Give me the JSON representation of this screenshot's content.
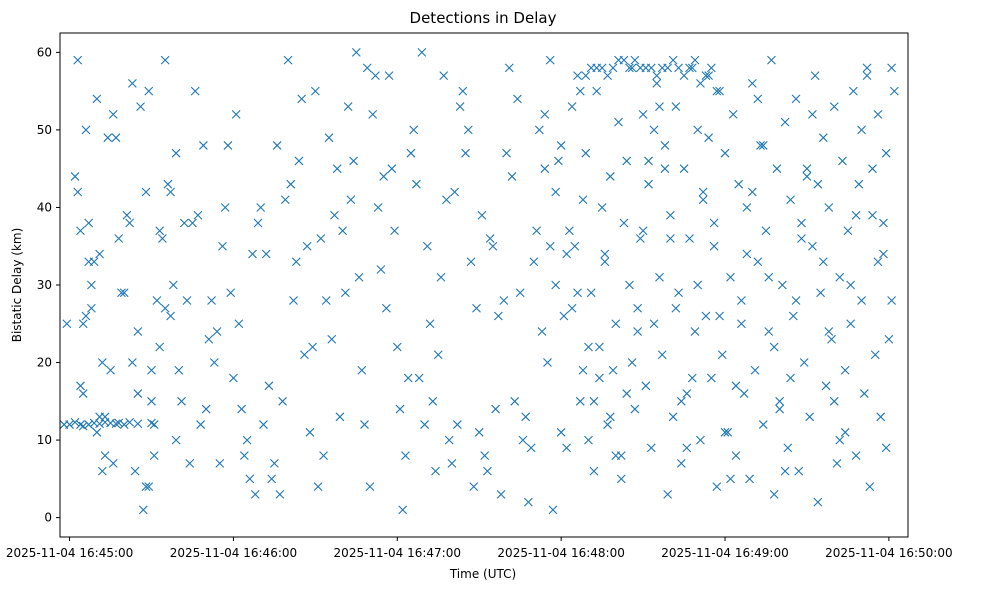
{
  "chart_data": {
    "type": "scatter",
    "title": "Detections in Delay",
    "xlabel": "Time (UTC)",
    "ylabel": "Bistatic Delay (km)",
    "marker": "x",
    "color": "#1f77b4",
    "x_axis_type": "time",
    "x_range_seconds": [
      -3.5,
      307
    ],
    "xlim": [
      "2025-11-04 16:44:56.5",
      "2025-11-04 16:50:07"
    ],
    "ylim": [
      -2.5,
      62.5
    ],
    "x_ticks": [
      "2025-11-04 16:45:00",
      "2025-11-04 16:46:00",
      "2025-11-04 16:47:00",
      "2025-11-04 16:48:00",
      "2025-11-04 16:49:00",
      "2025-11-04 16:50:00"
    ],
    "y_ticks": [
      0,
      10,
      20,
      30,
      40,
      50,
      60
    ],
    "grid": false,
    "points": [
      [
        -2,
        12
      ],
      [
        0,
        12
      ],
      [
        2,
        12.3
      ],
      [
        4,
        12
      ],
      [
        5,
        11.8
      ],
      [
        7,
        12
      ],
      [
        9,
        12.2
      ],
      [
        11,
        12.1
      ],
      [
        13,
        12.3
      ],
      [
        15,
        12.2
      ],
      [
        17,
        12.1
      ],
      [
        18,
        12.2
      ],
      [
        20,
        12
      ],
      [
        22,
        12.3
      ],
      [
        25,
        12.1
      ],
      [
        30,
        12.2
      ],
      [
        -1,
        25
      ],
      [
        3,
        59
      ],
      [
        4,
        17
      ],
      [
        5,
        16
      ],
      [
        6,
        50
      ],
      [
        7,
        38
      ],
      [
        8,
        27
      ],
      [
        10,
        54
      ],
      [
        11,
        34
      ],
      [
        12,
        20
      ],
      [
        13,
        13
      ],
      [
        15,
        19
      ],
      [
        16,
        7
      ],
      [
        17,
        49
      ],
      [
        18,
        36
      ],
      [
        20,
        29
      ],
      [
        21,
        39
      ],
      [
        22,
        38
      ],
      [
        23,
        20
      ],
      [
        24,
        6
      ],
      [
        25,
        24
      ],
      [
        26,
        53
      ],
      [
        28,
        42
      ],
      [
        29,
        55
      ],
      [
        30,
        19
      ],
      [
        31,
        8
      ],
      [
        32,
        28
      ],
      [
        33,
        37
      ],
      [
        34,
        36
      ],
      [
        35,
        59
      ],
      [
        36,
        43
      ],
      [
        37,
        42
      ],
      [
        38,
        30
      ],
      [
        39,
        10
      ],
      [
        2,
        44
      ],
      [
        3,
        42
      ],
      [
        4,
        37
      ],
      [
        5,
        25
      ],
      [
        6,
        26
      ],
      [
        7,
        33
      ],
      [
        8,
        30
      ],
      [
        9,
        33
      ],
      [
        10,
        11
      ],
      [
        11,
        13
      ],
      [
        12,
        6
      ],
      [
        13,
        8
      ],
      [
        14,
        49
      ],
      [
        16,
        52
      ],
      [
        19,
        29
      ],
      [
        23,
        56
      ],
      [
        25,
        16
      ],
      [
        27,
        1
      ],
      [
        28,
        4
      ],
      [
        29,
        4
      ],
      [
        30,
        15
      ],
      [
        31,
        12
      ],
      [
        33,
        22
      ],
      [
        35,
        27
      ],
      [
        37,
        26
      ],
      [
        39,
        47
      ],
      [
        40,
        19
      ],
      [
        41,
        15
      ],
      [
        42,
        38
      ],
      [
        43,
        28
      ],
      [
        44,
        7
      ],
      [
        45,
        38
      ],
      [
        46,
        55
      ],
      [
        47,
        39
      ],
      [
        48,
        12
      ],
      [
        49,
        48
      ],
      [
        50,
        14
      ],
      [
        51,
        23
      ],
      [
        52,
        28
      ],
      [
        53,
        20
      ],
      [
        54,
        24
      ],
      [
        55,
        7
      ],
      [
        56,
        35
      ],
      [
        57,
        40
      ],
      [
        58,
        48
      ],
      [
        59,
        29
      ],
      [
        60,
        18
      ],
      [
        61,
        52
      ],
      [
        62,
        25
      ],
      [
        63,
        14
      ],
      [
        64,
        8
      ],
      [
        65,
        10
      ],
      [
        66,
        5
      ],
      [
        67,
        34
      ],
      [
        68,
        3
      ],
      [
        69,
        38
      ],
      [
        70,
        40
      ],
      [
        71,
        12
      ],
      [
        72,
        34
      ],
      [
        73,
        17
      ],
      [
        74,
        5
      ],
      [
        75,
        7
      ],
      [
        76,
        48
      ],
      [
        77,
        3
      ],
      [
        78,
        15
      ],
      [
        79,
        41
      ],
      [
        80,
        59
      ],
      [
        81,
        43
      ],
      [
        82,
        28
      ],
      [
        83,
        33
      ],
      [
        84,
        46
      ],
      [
        85,
        54
      ],
      [
        86,
        21
      ],
      [
        87,
        35
      ],
      [
        88,
        11
      ],
      [
        89,
        22
      ],
      [
        90,
        55
      ],
      [
        91,
        4
      ],
      [
        92,
        36
      ],
      [
        93,
        8
      ],
      [
        94,
        28
      ],
      [
        95,
        49
      ],
      [
        96,
        23
      ],
      [
        97,
        39
      ],
      [
        98,
        45
      ],
      [
        99,
        13
      ],
      [
        100,
        37
      ],
      [
        101,
        29
      ],
      [
        102,
        53
      ],
      [
        103,
        41
      ],
      [
        104,
        46
      ],
      [
        105,
        60
      ],
      [
        106,
        31
      ],
      [
        107,
        19
      ],
      [
        108,
        12
      ],
      [
        109,
        58
      ],
      [
        110,
        4
      ],
      [
        111,
        52
      ],
      [
        112,
        57
      ],
      [
        113,
        40
      ],
      [
        114,
        32
      ],
      [
        115,
        44
      ],
      [
        116,
        27
      ],
      [
        117,
        57
      ],
      [
        118,
        45
      ],
      [
        119,
        37
      ],
      [
        120,
        22
      ],
      [
        121,
        14
      ],
      [
        122,
        1
      ],
      [
        123,
        8
      ],
      [
        124,
        18
      ],
      [
        125,
        47
      ],
      [
        126,
        50
      ],
      [
        127,
        43
      ],
      [
        128,
        18
      ],
      [
        129,
        60
      ],
      [
        130,
        12
      ],
      [
        131,
        35
      ],
      [
        132,
        25
      ],
      [
        133,
        15
      ],
      [
        134,
        6
      ],
      [
        135,
        21
      ],
      [
        136,
        31
      ],
      [
        137,
        57
      ],
      [
        138,
        41
      ],
      [
        139,
        10
      ],
      [
        140,
        7
      ],
      [
        141,
        42
      ],
      [
        142,
        12
      ],
      [
        143,
        53
      ],
      [
        144,
        55
      ],
      [
        145,
        47
      ],
      [
        146,
        50
      ],
      [
        147,
        33
      ],
      [
        148,
        4
      ],
      [
        149,
        27
      ],
      [
        150,
        11
      ],
      [
        151,
        39
      ],
      [
        152,
        8
      ],
      [
        153,
        6
      ],
      [
        154,
        36
      ],
      [
        155,
        35
      ],
      [
        156,
        14
      ],
      [
        157,
        26
      ],
      [
        158,
        3
      ],
      [
        159,
        28
      ],
      [
        160,
        47
      ],
      [
        161,
        58
      ],
      [
        162,
        44
      ],
      [
        163,
        15
      ],
      [
        164,
        54
      ],
      [
        165,
        29
      ],
      [
        166,
        10
      ],
      [
        167,
        13
      ],
      [
        168,
        2
      ],
      [
        169,
        9
      ],
      [
        170,
        33
      ],
      [
        171,
        37
      ],
      [
        172,
        50
      ],
      [
        173,
        24
      ],
      [
        174,
        45
      ],
      [
        175,
        20
      ],
      [
        176,
        59
      ],
      [
        177,
        1
      ],
      [
        178,
        30
      ],
      [
        179,
        46
      ],
      [
        180,
        11
      ],
      [
        181,
        26
      ],
      [
        182,
        9
      ],
      [
        183,
        37
      ],
      [
        184,
        53
      ],
      [
        185,
        35
      ],
      [
        186,
        57
      ],
      [
        187,
        15
      ],
      [
        188,
        41
      ],
      [
        189,
        47
      ],
      [
        190,
        22
      ],
      [
        191,
        29
      ],
      [
        192,
        6
      ],
      [
        193,
        55
      ],
      [
        194,
        18
      ],
      [
        195,
        40
      ],
      [
        196,
        34
      ],
      [
        197,
        12
      ],
      [
        198,
        44
      ],
      [
        199,
        19
      ],
      [
        200,
        25
      ],
      [
        201,
        51
      ],
      [
        202,
        8
      ],
      [
        203,
        38
      ],
      [
        204,
        46
      ],
      [
        205,
        30
      ],
      [
        206,
        58
      ],
      [
        207,
        14
      ],
      [
        208,
        27
      ],
      [
        209,
        36
      ],
      [
        210,
        52
      ],
      [
        211,
        17
      ],
      [
        212,
        43
      ],
      [
        213,
        9
      ],
      [
        214,
        25
      ],
      [
        215,
        56
      ],
      [
        216,
        31
      ],
      [
        217,
        21
      ],
      [
        218,
        48
      ],
      [
        219,
        3
      ],
      [
        220,
        39
      ],
      [
        221,
        13
      ],
      [
        222,
        53
      ],
      [
        223,
        29
      ],
      [
        224,
        7
      ],
      [
        225,
        45
      ],
      [
        226,
        16
      ],
      [
        227,
        36
      ],
      [
        228,
        58
      ],
      [
        229,
        24
      ],
      [
        230,
        50
      ],
      [
        231,
        10
      ],
      [
        232,
        42
      ],
      [
        233,
        26
      ],
      [
        234,
        57
      ],
      [
        235,
        18
      ],
      [
        236,
        35
      ],
      [
        237,
        4
      ],
      [
        238,
        55
      ],
      [
        239,
        21
      ],
      [
        240,
        47
      ],
      [
        241,
        11
      ],
      [
        242,
        31
      ],
      [
        243,
        52
      ],
      [
        244,
        8
      ],
      [
        245,
        43
      ],
      [
        246,
        28
      ],
      [
        247,
        16
      ],
      [
        248,
        40
      ],
      [
        249,
        5
      ],
      [
        250,
        56
      ],
      [
        251,
        19
      ],
      [
        252,
        33
      ],
      [
        253,
        48
      ],
      [
        254,
        12
      ],
      [
        255,
        37
      ],
      [
        256,
        24
      ],
      [
        257,
        59
      ],
      [
        258,
        3
      ],
      [
        259,
        45
      ],
      [
        260,
        15
      ],
      [
        261,
        30
      ],
      [
        262,
        51
      ],
      [
        263,
        9
      ],
      [
        264,
        41
      ],
      [
        265,
        26
      ],
      [
        266,
        54
      ],
      [
        267,
        6
      ],
      [
        268,
        38
      ],
      [
        269,
        20
      ],
      [
        270,
        44
      ],
      [
        271,
        13
      ],
      [
        272,
        35
      ],
      [
        273,
        57
      ],
      [
        274,
        2
      ],
      [
        275,
        29
      ],
      [
        276,
        49
      ],
      [
        277,
        17
      ],
      [
        278,
        40
      ],
      [
        279,
        23
      ],
      [
        280,
        53
      ],
      [
        281,
        7
      ],
      [
        282,
        31
      ],
      [
        283,
        46
      ],
      [
        284,
        11
      ],
      [
        285,
        37
      ],
      [
        286,
        25
      ],
      [
        287,
        55
      ],
      [
        288,
        8
      ],
      [
        289,
        43
      ],
      [
        290,
        28
      ],
      [
        291,
        16
      ],
      [
        292,
        58
      ],
      [
        293,
        4
      ],
      [
        294,
        39
      ],
      [
        295,
        21
      ],
      [
        296,
        52
      ],
      [
        297,
        13
      ],
      [
        298,
        34
      ],
      [
        299,
        47
      ],
      [
        300,
        23
      ],
      [
        301,
        28
      ],
      [
        187,
        55
      ],
      [
        189,
        57
      ],
      [
        191,
        58
      ],
      [
        193,
        58
      ],
      [
        195,
        58
      ],
      [
        197,
        57
      ],
      [
        199,
        58
      ],
      [
        201,
        59
      ],
      [
        203,
        59
      ],
      [
        205,
        58
      ],
      [
        207,
        59
      ],
      [
        209,
        58
      ],
      [
        211,
        58
      ],
      [
        213,
        58
      ],
      [
        215,
        57
      ],
      [
        217,
        58
      ],
      [
        219,
        58
      ],
      [
        221,
        59
      ],
      [
        223,
        58
      ],
      [
        225,
        57
      ],
      [
        227,
        58
      ],
      [
        229,
        59
      ],
      [
        231,
        56
      ],
      [
        233,
        57
      ],
      [
        235,
        58
      ],
      [
        237,
        55
      ],
      [
        174,
        52
      ],
      [
        176,
        35
      ],
      [
        178,
        42
      ],
      [
        180,
        48
      ],
      [
        182,
        34
      ],
      [
        184,
        27
      ],
      [
        186,
        29
      ],
      [
        188,
        19
      ],
      [
        190,
        10
      ],
      [
        192,
        15
      ],
      [
        194,
        22
      ],
      [
        196,
        33
      ],
      [
        198,
        13
      ],
      [
        200,
        8
      ],
      [
        202,
        5
      ],
      [
        204,
        16
      ],
      [
        206,
        20
      ],
      [
        208,
        24
      ],
      [
        210,
        37
      ],
      [
        212,
        46
      ],
      [
        214,
        50
      ],
      [
        216,
        53
      ],
      [
        218,
        45
      ],
      [
        220,
        36
      ],
      [
        222,
        27
      ],
      [
        224,
        15
      ],
      [
        226,
        9
      ],
      [
        228,
        18
      ],
      [
        230,
        30
      ],
      [
        232,
        41
      ],
      [
        234,
        49
      ],
      [
        236,
        38
      ],
      [
        238,
        26
      ],
      [
        240,
        11
      ],
      [
        242,
        5
      ],
      [
        244,
        17
      ],
      [
        246,
        25
      ],
      [
        248,
        34
      ],
      [
        250,
        42
      ],
      [
        252,
        54
      ],
      [
        254,
        48
      ],
      [
        256,
        31
      ],
      [
        258,
        22
      ],
      [
        260,
        14
      ],
      [
        262,
        6
      ],
      [
        264,
        18
      ],
      [
        266,
        28
      ],
      [
        268,
        36
      ],
      [
        270,
        45
      ],
      [
        272,
        52
      ],
      [
        274,
        43
      ],
      [
        276,
        33
      ],
      [
        278,
        24
      ],
      [
        280,
        15
      ],
      [
        282,
        10
      ],
      [
        284,
        19
      ],
      [
        286,
        30
      ],
      [
        288,
        39
      ],
      [
        290,
        50
      ],
      [
        292,
        57
      ],
      [
        294,
        45
      ],
      [
        296,
        33
      ],
      [
        298,
        38
      ],
      [
        299,
        9
      ],
      [
        301,
        58
      ],
      [
        302,
        55
      ]
    ]
  }
}
